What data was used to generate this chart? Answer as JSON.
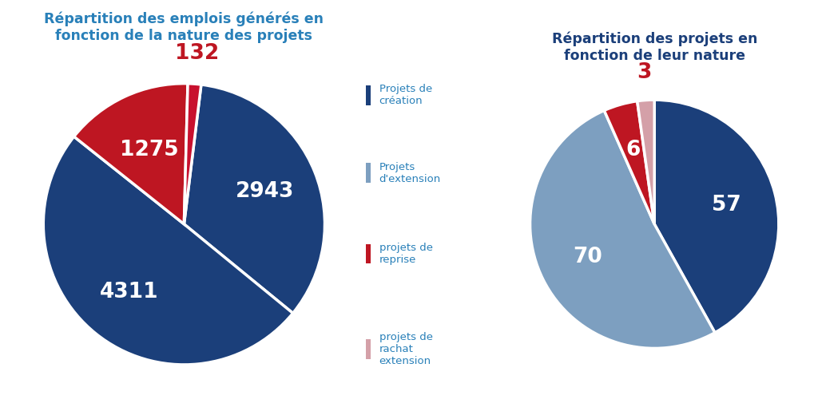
{
  "chart1_title": "Répartition des emplois générés en\nfonction de la nature des projets",
  "chart2_title": "Répartition des projets en\nfonction de leur nature",
  "chart1_values": [
    2943,
    4311,
    1275,
    132
  ],
  "chart1_colors": [
    "#1b3f7a",
    "#1b3f7a",
    "#be1622",
    "#c8102e"
  ],
  "chart2_values": [
    57,
    70,
    6,
    3
  ],
  "chart2_colors": [
    "#1b3f7a",
    "#7d9fc0",
    "#be1622",
    "#d4a0a8"
  ],
  "legend_labels": [
    "Projets de\ncréation",
    "Projets\nd'extension",
    "projets de\nreprise",
    "projets de\nrachat\nextension"
  ],
  "legend_colors": [
    "#1b3f7a",
    "#7d9fc0",
    "#be1622",
    "#d4a0a8"
  ],
  "title1_color": "#2980b9",
  "title2_color": "#1b3f7a",
  "label_color_red": "#be1622",
  "label_color_white": "#ffffff",
  "background_color": "#ffffff",
  "legend_text_color": "#2980b9"
}
